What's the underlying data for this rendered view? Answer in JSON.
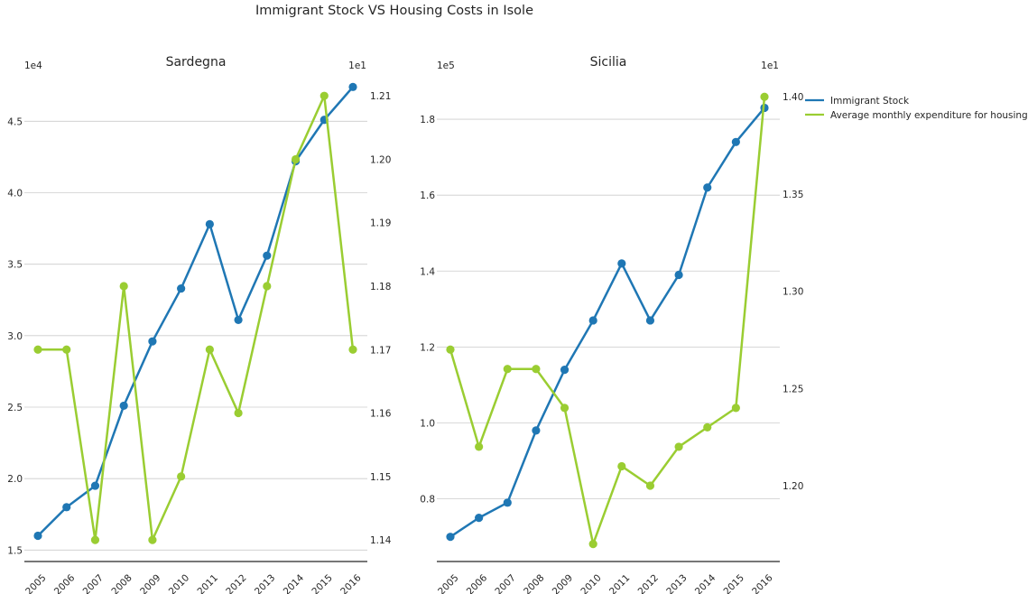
{
  "title": "Immigrant Stock VS Housing Costs in Isole",
  "colors": {
    "immigrant": "#1f77b4",
    "housing": "#9acd32"
  },
  "legend": {
    "placement": "top-right",
    "entries": [
      "Immigrant Stock",
      "Average monthly expenditure for housing"
    ]
  },
  "chart_data": [
    {
      "type": "line",
      "title": "Sardegna",
      "x": [
        "2005",
        "2006",
        "2007",
        "2008",
        "2009",
        "2010",
        "2011",
        "2012",
        "2013",
        "2014",
        "2015",
        "2016"
      ],
      "left_axis": {
        "multiplier": "1e4",
        "ylim": [
          1.42,
          4.78
        ],
        "ticks": [
          1.5,
          2.0,
          2.5,
          3.0,
          3.5,
          4.0,
          4.5
        ],
        "tick_labels": [
          "1.5",
          "2.0",
          "2.5",
          "3.0",
          "3.5",
          "4.0",
          "4.5"
        ]
      },
      "right_axis": {
        "multiplier": "1e1",
        "ylim": [
          1.1366,
          1.2123
        ],
        "ticks": [
          1.14,
          1.15,
          1.16,
          1.17,
          1.18,
          1.19,
          1.2,
          1.21
        ],
        "tick_labels": [
          "1.14",
          "1.15",
          "1.16",
          "1.17",
          "1.18",
          "1.19",
          "1.20",
          "1.21"
        ]
      },
      "grid": true,
      "series": [
        {
          "name": "Immigrant Stock",
          "axis": "left",
          "values": [
            1.6,
            1.8,
            1.95,
            2.51,
            2.96,
            3.33,
            3.78,
            3.11,
            3.56,
            4.22,
            4.51,
            4.74
          ]
        },
        {
          "name": "Average monthly expenditure for housing",
          "axis": "right",
          "values": [
            1.17,
            1.17,
            1.14,
            1.18,
            1.14,
            1.15,
            1.17,
            1.16,
            1.18,
            1.2,
            1.21,
            1.17
          ]
        }
      ]
    },
    {
      "type": "line",
      "title": "Sicilia",
      "x": [
        "2005",
        "2006",
        "2007",
        "2008",
        "2009",
        "2010",
        "2011",
        "2012",
        "2013",
        "2014",
        "2015",
        "2016"
      ],
      "left_axis": {
        "multiplier": "1e5",
        "ylim": [
          0.635,
          1.9
        ],
        "ticks": [
          0.8,
          1.0,
          1.2,
          1.4,
          1.6,
          1.8
        ],
        "tick_labels": [
          "0.8",
          "1.0",
          "1.2",
          "1.4",
          "1.6",
          "1.8"
        ]
      },
      "right_axis": {
        "multiplier": "1e1",
        "ylim": [
          1.161,
          1.408
        ],
        "ticks": [
          1.2,
          1.25,
          1.3,
          1.35,
          1.4
        ],
        "tick_labels": [
          "1.20",
          "1.25",
          "1.30",
          "1.35",
          "1.40"
        ]
      },
      "grid": true,
      "series": [
        {
          "name": "Immigrant Stock",
          "axis": "left",
          "values": [
            0.7,
            0.75,
            0.79,
            0.98,
            1.14,
            1.27,
            1.42,
            1.27,
            1.39,
            1.62,
            1.74,
            1.83
          ]
        },
        {
          "name": "Average monthly expenditure for housing",
          "axis": "right",
          "values": [
            1.27,
            1.22,
            1.26,
            1.26,
            1.24,
            1.17,
            1.21,
            1.2,
            1.22,
            1.23,
            1.24,
            1.4
          ]
        }
      ]
    }
  ]
}
